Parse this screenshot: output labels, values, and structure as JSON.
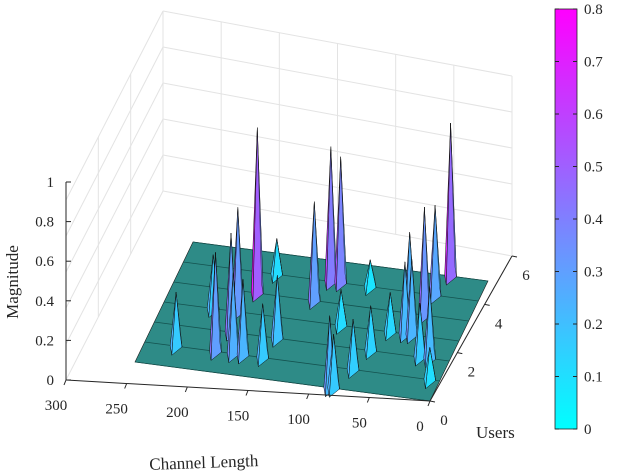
{
  "chart_data": {
    "type": "surface3d",
    "title": "",
    "xlabel": "Channel Length",
    "ylabel": "Users",
    "zlabel": "Magnitude",
    "xlim": [
      0,
      300
    ],
    "ylim": [
      0,
      6
    ],
    "zlim": [
      0,
      1
    ],
    "xticks": [
      "0",
      "50",
      "100",
      "150",
      "200",
      "250",
      "300"
    ],
    "yticks": [
      "0",
      "2",
      "4",
      "6"
    ],
    "zticks": [
      "0",
      "0.2",
      "0.4",
      "0.6",
      "0.8",
      "1"
    ],
    "colorbar": {
      "range": [
        0,
        0.8
      ],
      "ticks": [
        "0",
        "0.1",
        "0.2",
        "0.3",
        "0.4",
        "0.5",
        "0.6",
        "0.7",
        "0.8"
      ],
      "color_low": "#00ffff",
      "color_high": "#ff00ff"
    },
    "surface_base_color": "#2e8b87",
    "grid": true,
    "peaks": [
      {
        "x": 215,
        "y": 4,
        "z": 0.92
      },
      {
        "x": 225,
        "y": 3,
        "z": 0.58
      },
      {
        "x": 222,
        "y": 2,
        "z": 0.55
      },
      {
        "x": 210,
        "y": 1,
        "z": 0.45
      },
      {
        "x": 228,
        "y": 1,
        "z": 0.55
      },
      {
        "x": 200,
        "y": 1,
        "z": 0.42
      },
      {
        "x": 205,
        "y": 5,
        "z": 0.2
      },
      {
        "x": 268,
        "y": 1,
        "z": 0.3
      },
      {
        "x": 150,
        "y": 5,
        "z": 0.75
      },
      {
        "x": 140,
        "y": 5,
        "z": 0.7
      },
      {
        "x": 157,
        "y": 4,
        "z": 0.55
      },
      {
        "x": 175,
        "y": 2,
        "z": 0.35
      },
      {
        "x": 180,
        "y": 1,
        "z": 0.3
      },
      {
        "x": 102,
        "y": 0,
        "z": 0.4
      },
      {
        "x": 98,
        "y": 0,
        "z": 0.3
      },
      {
        "x": 88,
        "y": 1,
        "z": 0.28
      },
      {
        "x": 60,
        "y": 4,
        "z": 0.45
      },
      {
        "x": 55,
        "y": 3,
        "z": 0.4
      },
      {
        "x": 38,
        "y": 6,
        "z": 0.85
      },
      {
        "x": 44,
        "y": 5,
        "z": 0.5
      },
      {
        "x": 30,
        "y": 2,
        "z": 0.3
      },
      {
        "x": 45,
        "y": 4,
        "z": 0.6
      },
      {
        "x": 20,
        "y": 2,
        "z": 0.4
      },
      {
        "x": 48,
        "y": 3,
        "z": 0.42
      },
      {
        "x": 10,
        "y": 1,
        "z": 0.18
      },
      {
        "x": 80,
        "y": 2,
        "z": 0.25
      },
      {
        "x": 120,
        "y": 3,
        "z": 0.2
      },
      {
        "x": 250,
        "y": 3,
        "z": 0.3
      },
      {
        "x": 110,
        "y": 5,
        "z": 0.15
      },
      {
        "x": 70,
        "y": 3,
        "z": 0.22
      }
    ]
  }
}
